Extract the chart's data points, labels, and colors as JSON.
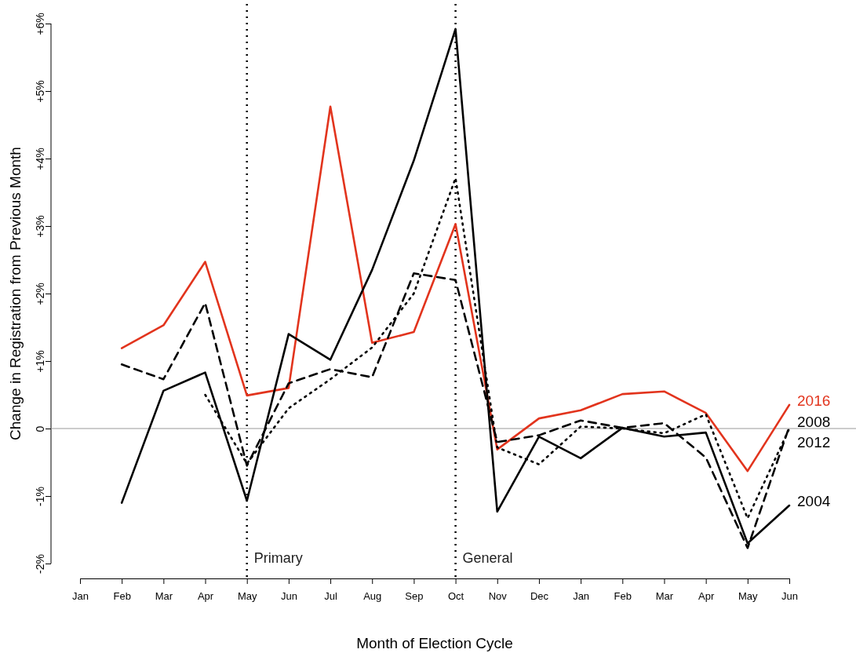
{
  "chart_data": {
    "type": "line",
    "xlabel": "Month of Election Cycle",
    "ylabel": "Change in Registration from Previous Month",
    "categories": [
      "Jan",
      "Feb",
      "Mar",
      "Apr",
      "May",
      "Jun",
      "Jul",
      "Aug",
      "Sep",
      "Oct",
      "Nov",
      "Dec",
      "Jan",
      "Feb",
      "Mar",
      "Apr",
      "May",
      "Jun"
    ],
    "ylim": [
      -2,
      6
    ],
    "yticks": [
      {
        "value": -2,
        "label": "-2%"
      },
      {
        "value": -1,
        "label": "-1%"
      },
      0,
      {
        "value": 1,
        "label": "+1%"
      },
      {
        "value": 2,
        "label": "+2%"
      },
      {
        "value": 3,
        "label": "+3%"
      },
      {
        "value": 4,
        "label": "+4%"
      },
      {
        "value": 5,
        "label": "+5%"
      },
      {
        "value": 6,
        "label": "+6%"
      }
    ],
    "legend": false,
    "grid": false,
    "series": [
      {
        "name": "2016",
        "color": "#e2341d",
        "line_style": "solid",
        "values": [
          null,
          1.19,
          1.53,
          2.47,
          0.49,
          0.6,
          4.77,
          1.27,
          1.43,
          3.03,
          -0.31,
          0.15,
          0.27,
          0.51,
          0.55,
          0.23,
          -0.63,
          0.35
        ]
      },
      {
        "name": "2008",
        "color": "#000000",
        "line_style": "dashed",
        "values": [
          null,
          0.95,
          0.73,
          1.86,
          -0.55,
          0.67,
          0.88,
          0.76,
          2.3,
          2.2,
          -0.2,
          -0.1,
          0.12,
          0.01,
          0.08,
          -0.43,
          -1.77,
          0.03
        ]
      },
      {
        "name": "2012",
        "color": "#000000",
        "line_style": "dotted",
        "values": [
          null,
          null,
          null,
          0.5,
          -0.52,
          0.3,
          0.73,
          1.2,
          2.0,
          3.71,
          -0.28,
          -0.53,
          0.03,
          0.0,
          -0.07,
          0.21,
          -1.33,
          0.0
        ]
      },
      {
        "name": "2004",
        "color": "#000000",
        "line_style": "solid",
        "values": [
          null,
          -1.1,
          0.56,
          0.83,
          -1.07,
          1.4,
          1.02,
          2.35,
          3.97,
          5.92,
          -1.23,
          -0.12,
          -0.44,
          0.01,
          -0.12,
          -0.06,
          -1.7,
          -1.14
        ]
      }
    ],
    "ref_lines": [
      {
        "axis": "y",
        "value": 0,
        "color": "#999999",
        "line_style": "solid"
      },
      {
        "axis": "x",
        "value": "May",
        "label": "Primary",
        "color": "#000000",
        "line_style": "dotted"
      },
      {
        "axis": "x",
        "value": "Oct",
        "label": "General",
        "color": "#000000",
        "line_style": "dotted"
      }
    ]
  }
}
